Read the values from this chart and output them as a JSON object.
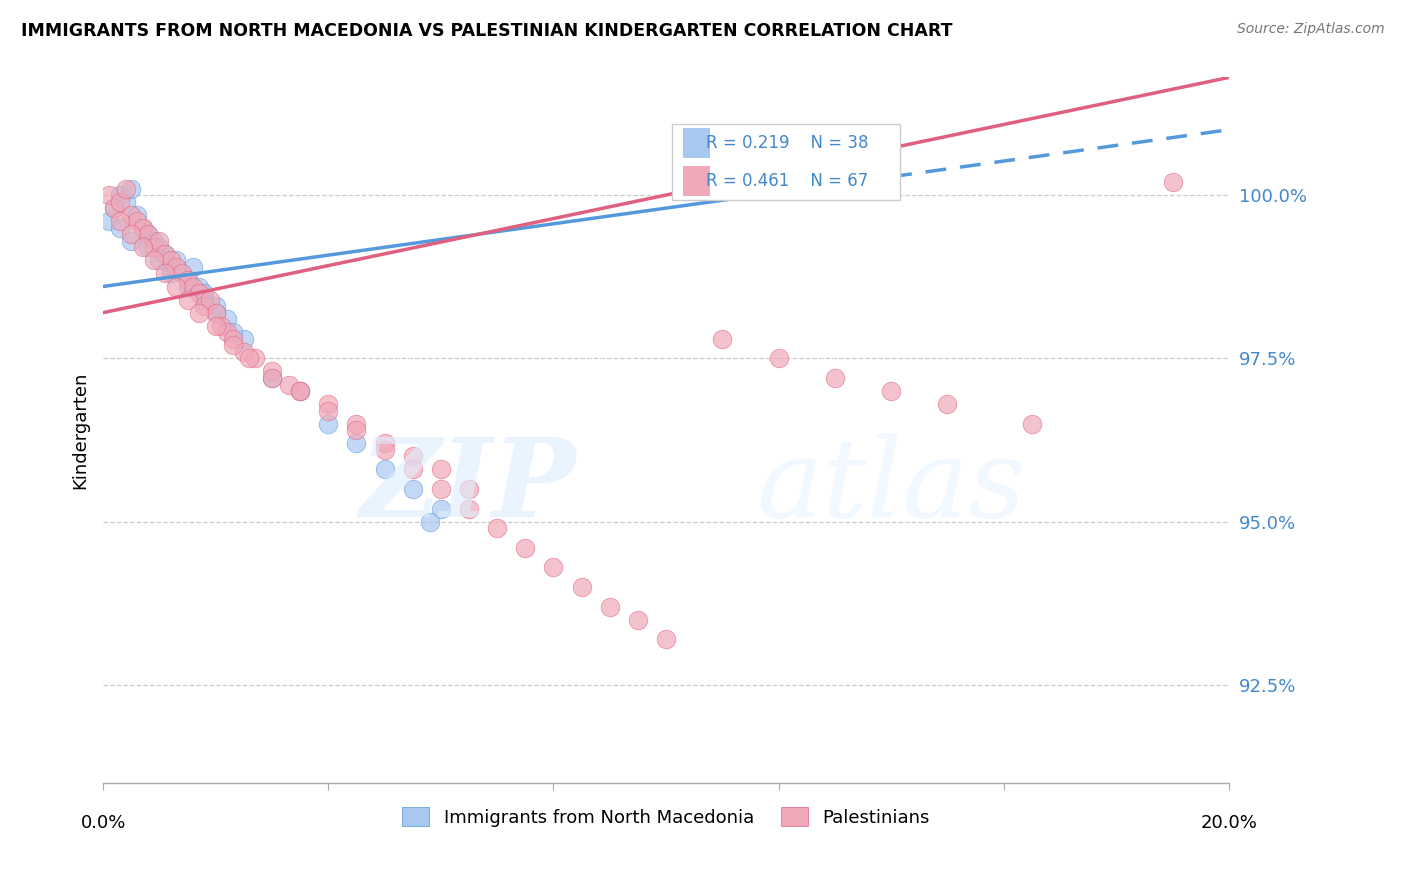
{
  "title": "IMMIGRANTS FROM NORTH MACEDONIA VS PALESTINIAN KINDERGARTEN CORRELATION CHART",
  "source": "Source: ZipAtlas.com",
  "ylabel": "Kindergarten",
  "ytick_vals": [
    92.5,
    95.0,
    97.5,
    100.0
  ],
  "xlim": [
    0.0,
    20.0
  ],
  "ylim": [
    91.0,
    101.8
  ],
  "legend_r_blue": "R = 0.219",
  "legend_n_blue": "N = 38",
  "legend_r_pink": "R = 0.461",
  "legend_n_pink": "N = 67",
  "legend1_label": "Immigrants from North Macedonia",
  "legend2_label": "Palestinians",
  "blue_color": "#a8c8f0",
  "pink_color": "#f0a8b8",
  "blue_line_color": "#5599dd",
  "pink_line_color": "#e06080",
  "text_color": "#4488cc",
  "blue_scatter_x": [
    0.1,
    0.2,
    0.3,
    0.4,
    0.5,
    0.6,
    0.7,
    0.8,
    0.9,
    1.0,
    1.1,
    1.2,
    1.3,
    1.4,
    1.5,
    1.6,
    1.7,
    1.8,
    2.0,
    2.2,
    2.5,
    3.0,
    3.5,
    4.0,
    4.5,
    5.0,
    5.5,
    6.0,
    0.3,
    0.5,
    0.8,
    1.0,
    1.2,
    1.5,
    1.8,
    2.0,
    2.3,
    5.8
  ],
  "blue_scatter_y": [
    99.6,
    99.8,
    100.0,
    99.9,
    100.1,
    99.7,
    99.5,
    99.4,
    99.3,
    99.2,
    99.1,
    98.9,
    99.0,
    98.8,
    98.7,
    98.9,
    98.6,
    98.5,
    98.3,
    98.1,
    97.8,
    97.2,
    97.0,
    96.5,
    96.2,
    95.8,
    95.5,
    95.2,
    99.5,
    99.3,
    99.2,
    99.0,
    98.8,
    98.6,
    98.4,
    98.2,
    97.9,
    95.0
  ],
  "pink_scatter_x": [
    0.1,
    0.2,
    0.3,
    0.4,
    0.5,
    0.6,
    0.7,
    0.8,
    0.9,
    1.0,
    1.1,
    1.2,
    1.3,
    1.4,
    1.5,
    1.6,
    1.7,
    1.8,
    1.9,
    2.0,
    2.1,
    2.2,
    2.3,
    2.5,
    2.7,
    3.0,
    3.3,
    3.5,
    4.0,
    4.5,
    5.0,
    5.5,
    6.0,
    6.5,
    0.3,
    0.5,
    0.7,
    0.9,
    1.1,
    1.3,
    1.5,
    1.7,
    2.0,
    2.3,
    2.6,
    3.0,
    3.5,
    4.0,
    4.5,
    5.0,
    5.5,
    6.0,
    6.5,
    7.0,
    7.5,
    8.0,
    8.5,
    9.0,
    9.5,
    10.0,
    11.0,
    12.0,
    13.0,
    14.0,
    15.0,
    16.5,
    19.0
  ],
  "pink_scatter_y": [
    100.0,
    99.8,
    99.9,
    100.1,
    99.7,
    99.6,
    99.5,
    99.4,
    99.2,
    99.3,
    99.1,
    99.0,
    98.9,
    98.8,
    98.7,
    98.6,
    98.5,
    98.3,
    98.4,
    98.2,
    98.0,
    97.9,
    97.8,
    97.6,
    97.5,
    97.3,
    97.1,
    97.0,
    96.8,
    96.5,
    96.2,
    96.0,
    95.8,
    95.5,
    99.6,
    99.4,
    99.2,
    99.0,
    98.8,
    98.6,
    98.4,
    98.2,
    98.0,
    97.7,
    97.5,
    97.2,
    97.0,
    96.7,
    96.4,
    96.1,
    95.8,
    95.5,
    95.2,
    94.9,
    94.6,
    94.3,
    94.0,
    93.7,
    93.5,
    93.2,
    97.8,
    97.5,
    97.2,
    97.0,
    96.8,
    96.5,
    100.2
  ],
  "blue_line_x_start": 0.0,
  "blue_line_x_solid_end": 14.0,
  "blue_line_x_end": 20.0,
  "blue_line_slope": 0.12,
  "blue_line_intercept": 98.6,
  "pink_line_slope": 0.18,
  "pink_line_intercept": 98.2
}
